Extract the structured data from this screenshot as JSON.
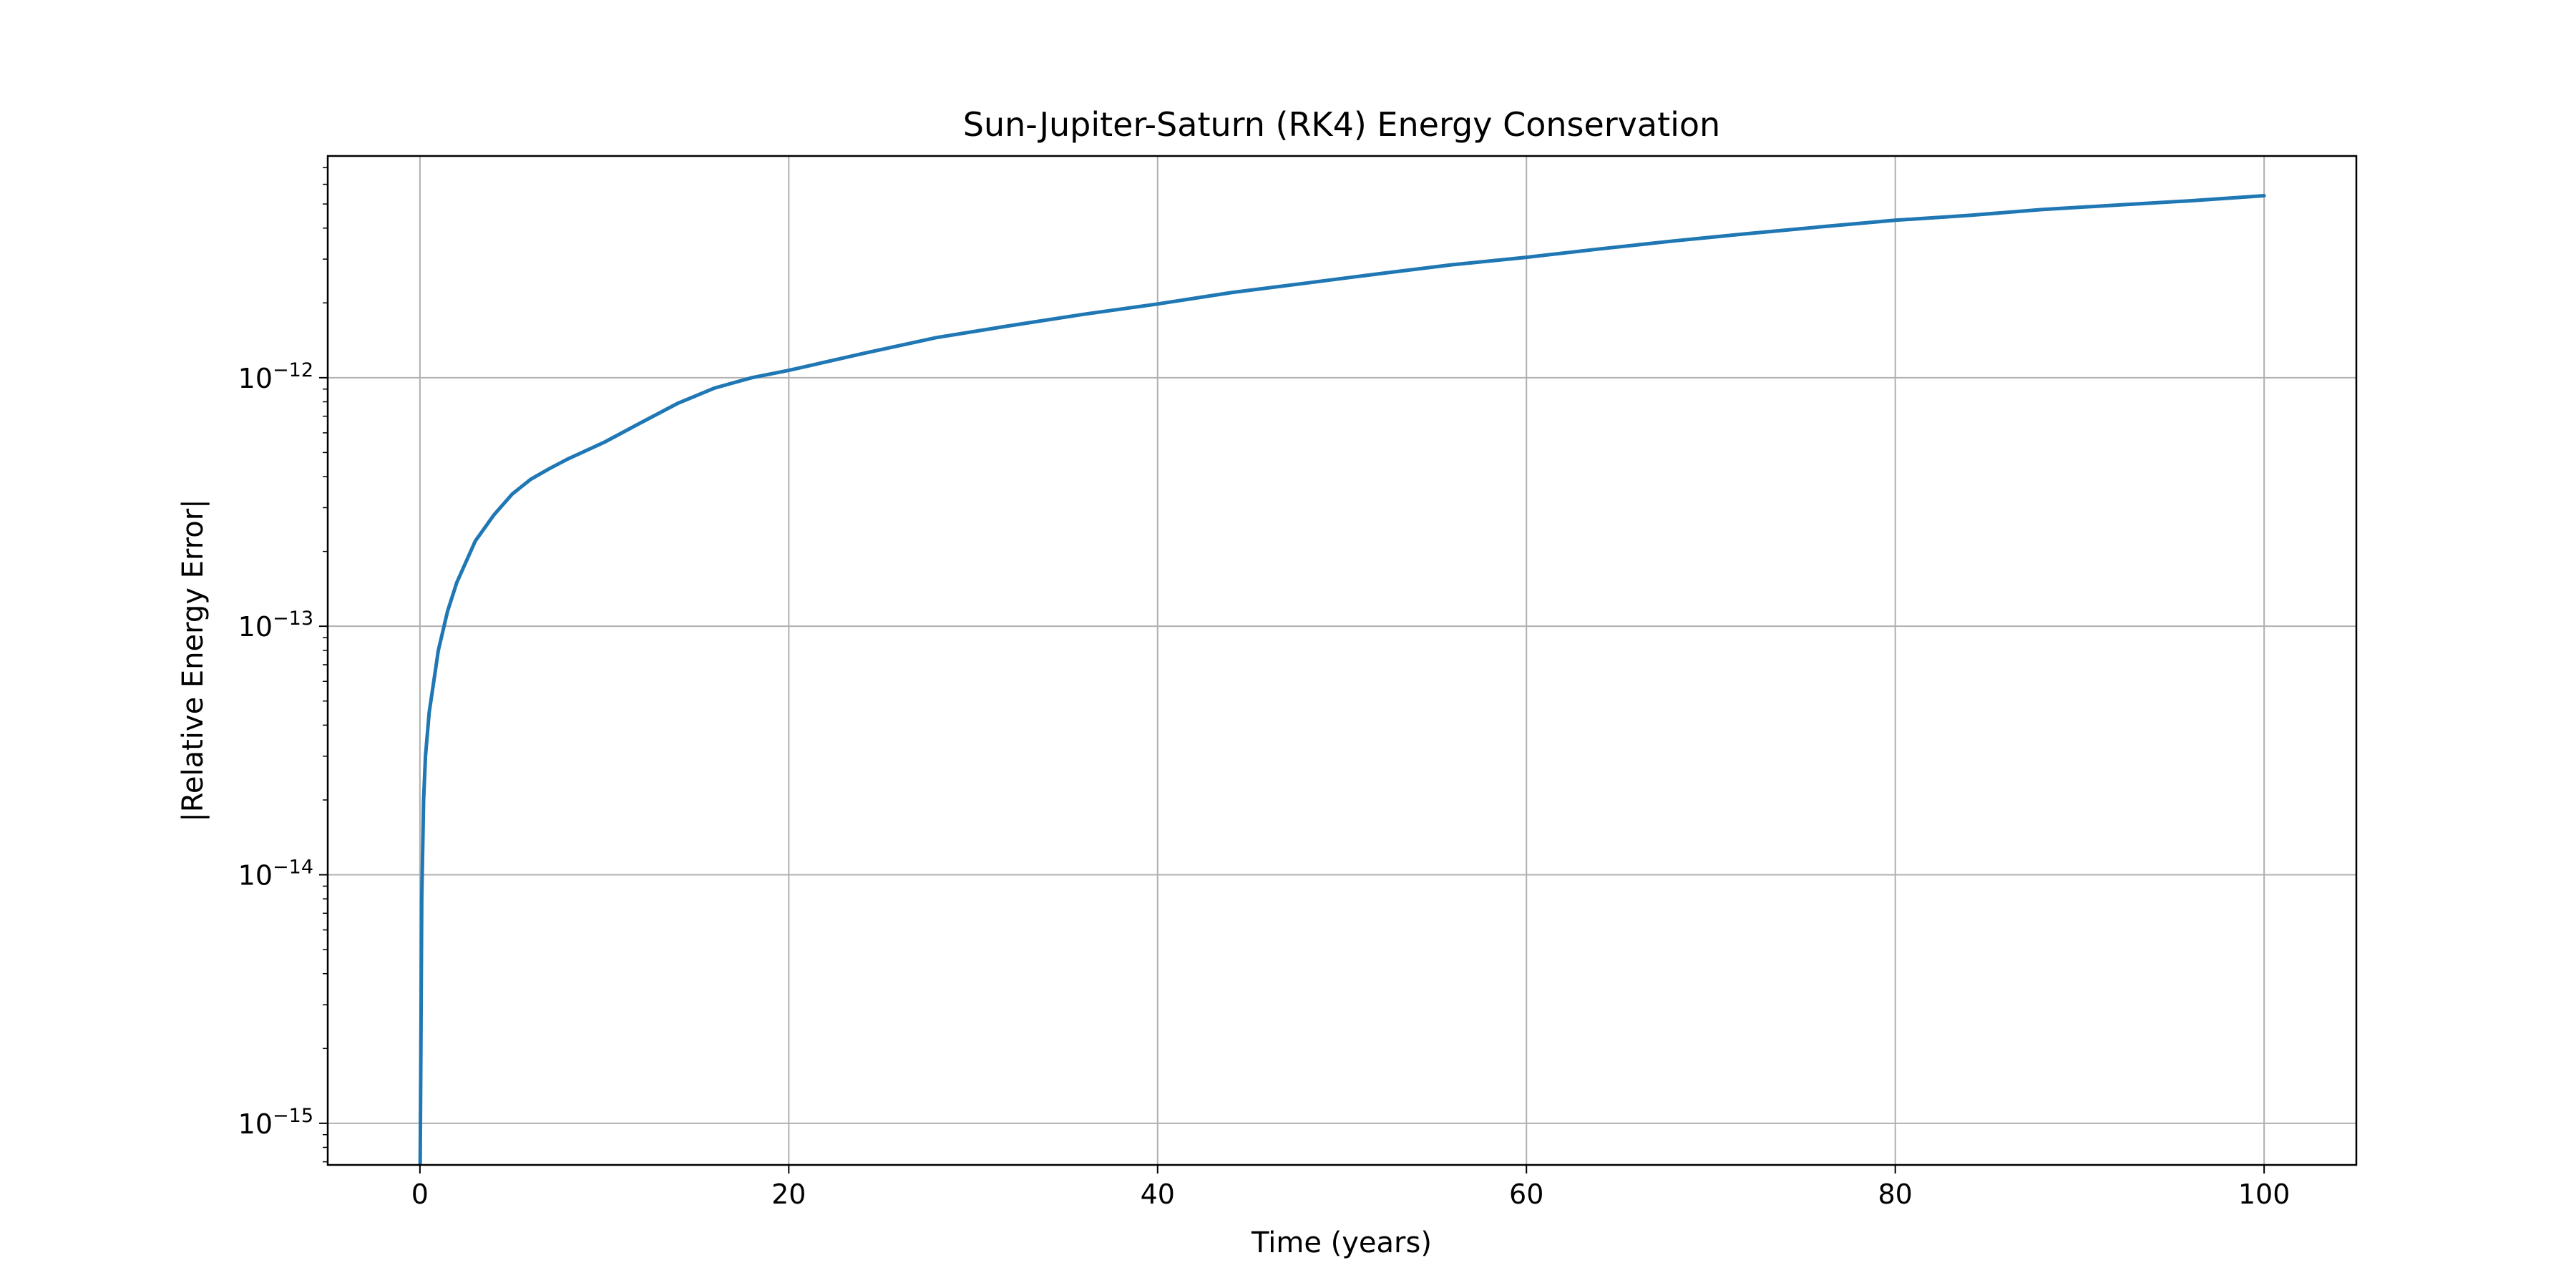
{
  "chart_data": {
    "type": "line",
    "title": "Sun-Jupiter-Saturn (RK4) Energy Conservation",
    "xlabel": "Time (years)",
    "ylabel": "|Relative Energy Error|",
    "xlim": [
      -5,
      105
    ],
    "ylim": [
      6.8e-16,
      7.8e-12
    ],
    "yscale": "log",
    "grid": true,
    "x_ticks": [
      0,
      20,
      40,
      60,
      80,
      100
    ],
    "y_ticks": [
      {
        "value": 1e-15,
        "base": "10",
        "exponent": "−15"
      },
      {
        "value": 1e-14,
        "base": "10",
        "exponent": "−14"
      },
      {
        "value": 1e-13,
        "base": "10",
        "exponent": "−13"
      },
      {
        "value": 1e-12,
        "base": "10",
        "exponent": "−12"
      }
    ],
    "series": [
      {
        "color": "#1f77b4",
        "x": [
          0,
          0.05,
          0.1,
          0.2,
          0.3,
          0.5,
          0.75,
          1,
          1.5,
          2,
          3,
          4,
          5,
          6,
          7,
          8,
          10,
          12,
          14,
          16,
          18,
          20,
          24,
          28,
          32,
          36,
          40,
          44,
          48,
          52,
          56,
          60,
          64,
          68,
          72,
          76,
          80,
          84,
          88,
          92,
          96,
          100
        ],
        "y": [
          5e-16,
          2e-15,
          8e-15,
          2e-14,
          3e-14,
          4.5e-14,
          6e-14,
          8e-14,
          1.15e-13,
          1.5e-13,
          2.2e-13,
          2.8e-13,
          3.4e-13,
          3.9e-13,
          4.3e-13,
          4.7e-13,
          5.5e-13,
          6.6e-13,
          7.9e-13,
          9.1e-13,
          1e-12,
          1.07e-12,
          1.25e-12,
          1.45e-12,
          1.62e-12,
          1.8e-12,
          1.98e-12,
          2.2e-12,
          2.4e-12,
          2.62e-12,
          2.85e-12,
          3.05e-12,
          3.3e-12,
          3.55e-12,
          3.8e-12,
          4.05e-12,
          4.3e-12,
          4.5e-12,
          4.75e-12,
          4.95e-12,
          5.15e-12,
          5.4e-12
        ]
      }
    ]
  }
}
